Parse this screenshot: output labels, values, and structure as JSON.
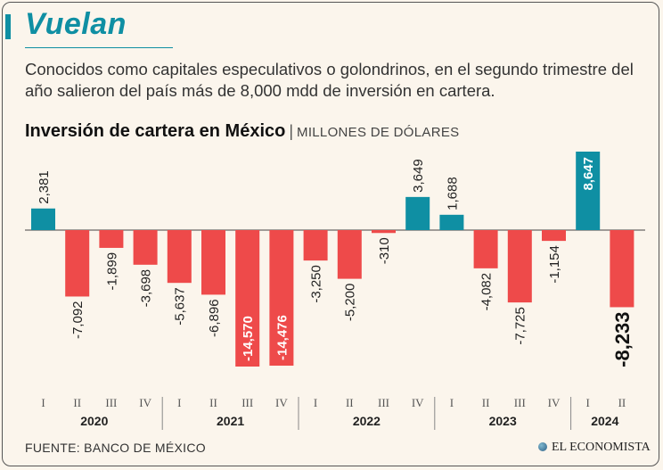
{
  "headline": "Vuelan",
  "intro": "Conocidos como capitales especulativos o golondrinos, en el segundo trimestre del año salieron del país más de 8,000 mdd de inversión en cartera.",
  "chart_title": "Inversión de cartera en México",
  "chart_unit": "MILLONES DE DÓLARES",
  "source": "FUENTE: BANCO DE MÉXICO",
  "brand": "EL ECONOMISTA",
  "colors": {
    "positive": "#0f8fa3",
    "negative": "#ee4a4a",
    "accent": "#0f8fa3"
  },
  "chart_data": {
    "type": "bar",
    "title": "Inversión de cartera en México",
    "ylabel": "MILLONES DE DÓLARES",
    "categories": [
      "I",
      "II",
      "III",
      "IV",
      "I",
      "II",
      "III",
      "IV",
      "I",
      "II",
      "III",
      "IV",
      "I",
      "II",
      "III",
      "IV",
      "I",
      "II"
    ],
    "years": [
      {
        "label": "2020",
        "count": 4
      },
      {
        "label": "2021",
        "count": 4
      },
      {
        "label": "2022",
        "count": 4
      },
      {
        "label": "2023",
        "count": 4
      },
      {
        "label": "2024",
        "count": 2
      }
    ],
    "values": [
      2381,
      -7092,
      -1899,
      -3698,
      -5637,
      -6896,
      -14570,
      -14476,
      -3250,
      -5200,
      -310,
      3649,
      1688,
      -4082,
      -7725,
      -1154,
      8647,
      -8233
    ],
    "labels": [
      "2,381",
      "-7,092",
      "-1,899",
      "-3,698",
      "-5,637",
      "-6,896",
      "-14,570",
      "-14,476",
      "-3,250",
      "-5,200",
      "-310",
      "3,649",
      "1,688",
      "-4,082",
      "-7,725",
      "-1,154",
      "8,647",
      "-8,233"
    ],
    "ylim": [
      -14570,
      8647
    ]
  }
}
